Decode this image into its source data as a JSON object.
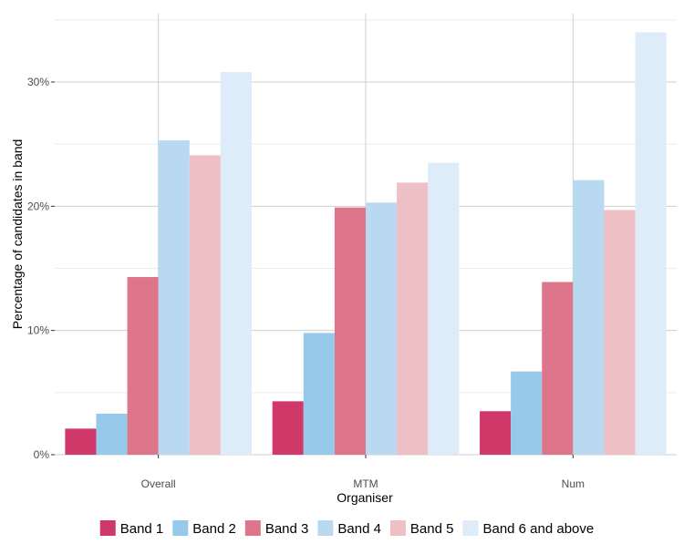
{
  "chart_data": {
    "type": "bar",
    "xlabel": "Organiser",
    "ylabel": "Percentage of candidates in band",
    "categories": [
      "Overall",
      "MTM",
      "Num"
    ],
    "y_ticks": [
      "0%",
      "10%",
      "20%",
      "30%"
    ],
    "y_tick_values": [
      0,
      10,
      20,
      30
    ],
    "ylim": [
      0,
      35.5
    ],
    "grid": true,
    "legend_position": "bottom",
    "series": [
      {
        "name": "Band 1",
        "color": "#d0386a",
        "values": [
          2.1,
          4.3,
          3.5
        ]
      },
      {
        "name": "Band 2",
        "color": "#97c9ea",
        "values": [
          3.3,
          9.8,
          6.7
        ]
      },
      {
        "name": "Band 3",
        "color": "#de768b",
        "values": [
          14.3,
          19.9,
          13.9
        ]
      },
      {
        "name": "Band 4",
        "color": "#b9d9f1",
        "values": [
          25.3,
          20.3,
          22.1
        ]
      },
      {
        "name": "Band 5",
        "color": "#efbfc6",
        "values": [
          24.1,
          21.9,
          19.7
        ]
      },
      {
        "name": "Band 6 and above",
        "color": "#deebf8",
        "values": [
          30.8,
          23.5,
          34.0
        ]
      }
    ]
  }
}
